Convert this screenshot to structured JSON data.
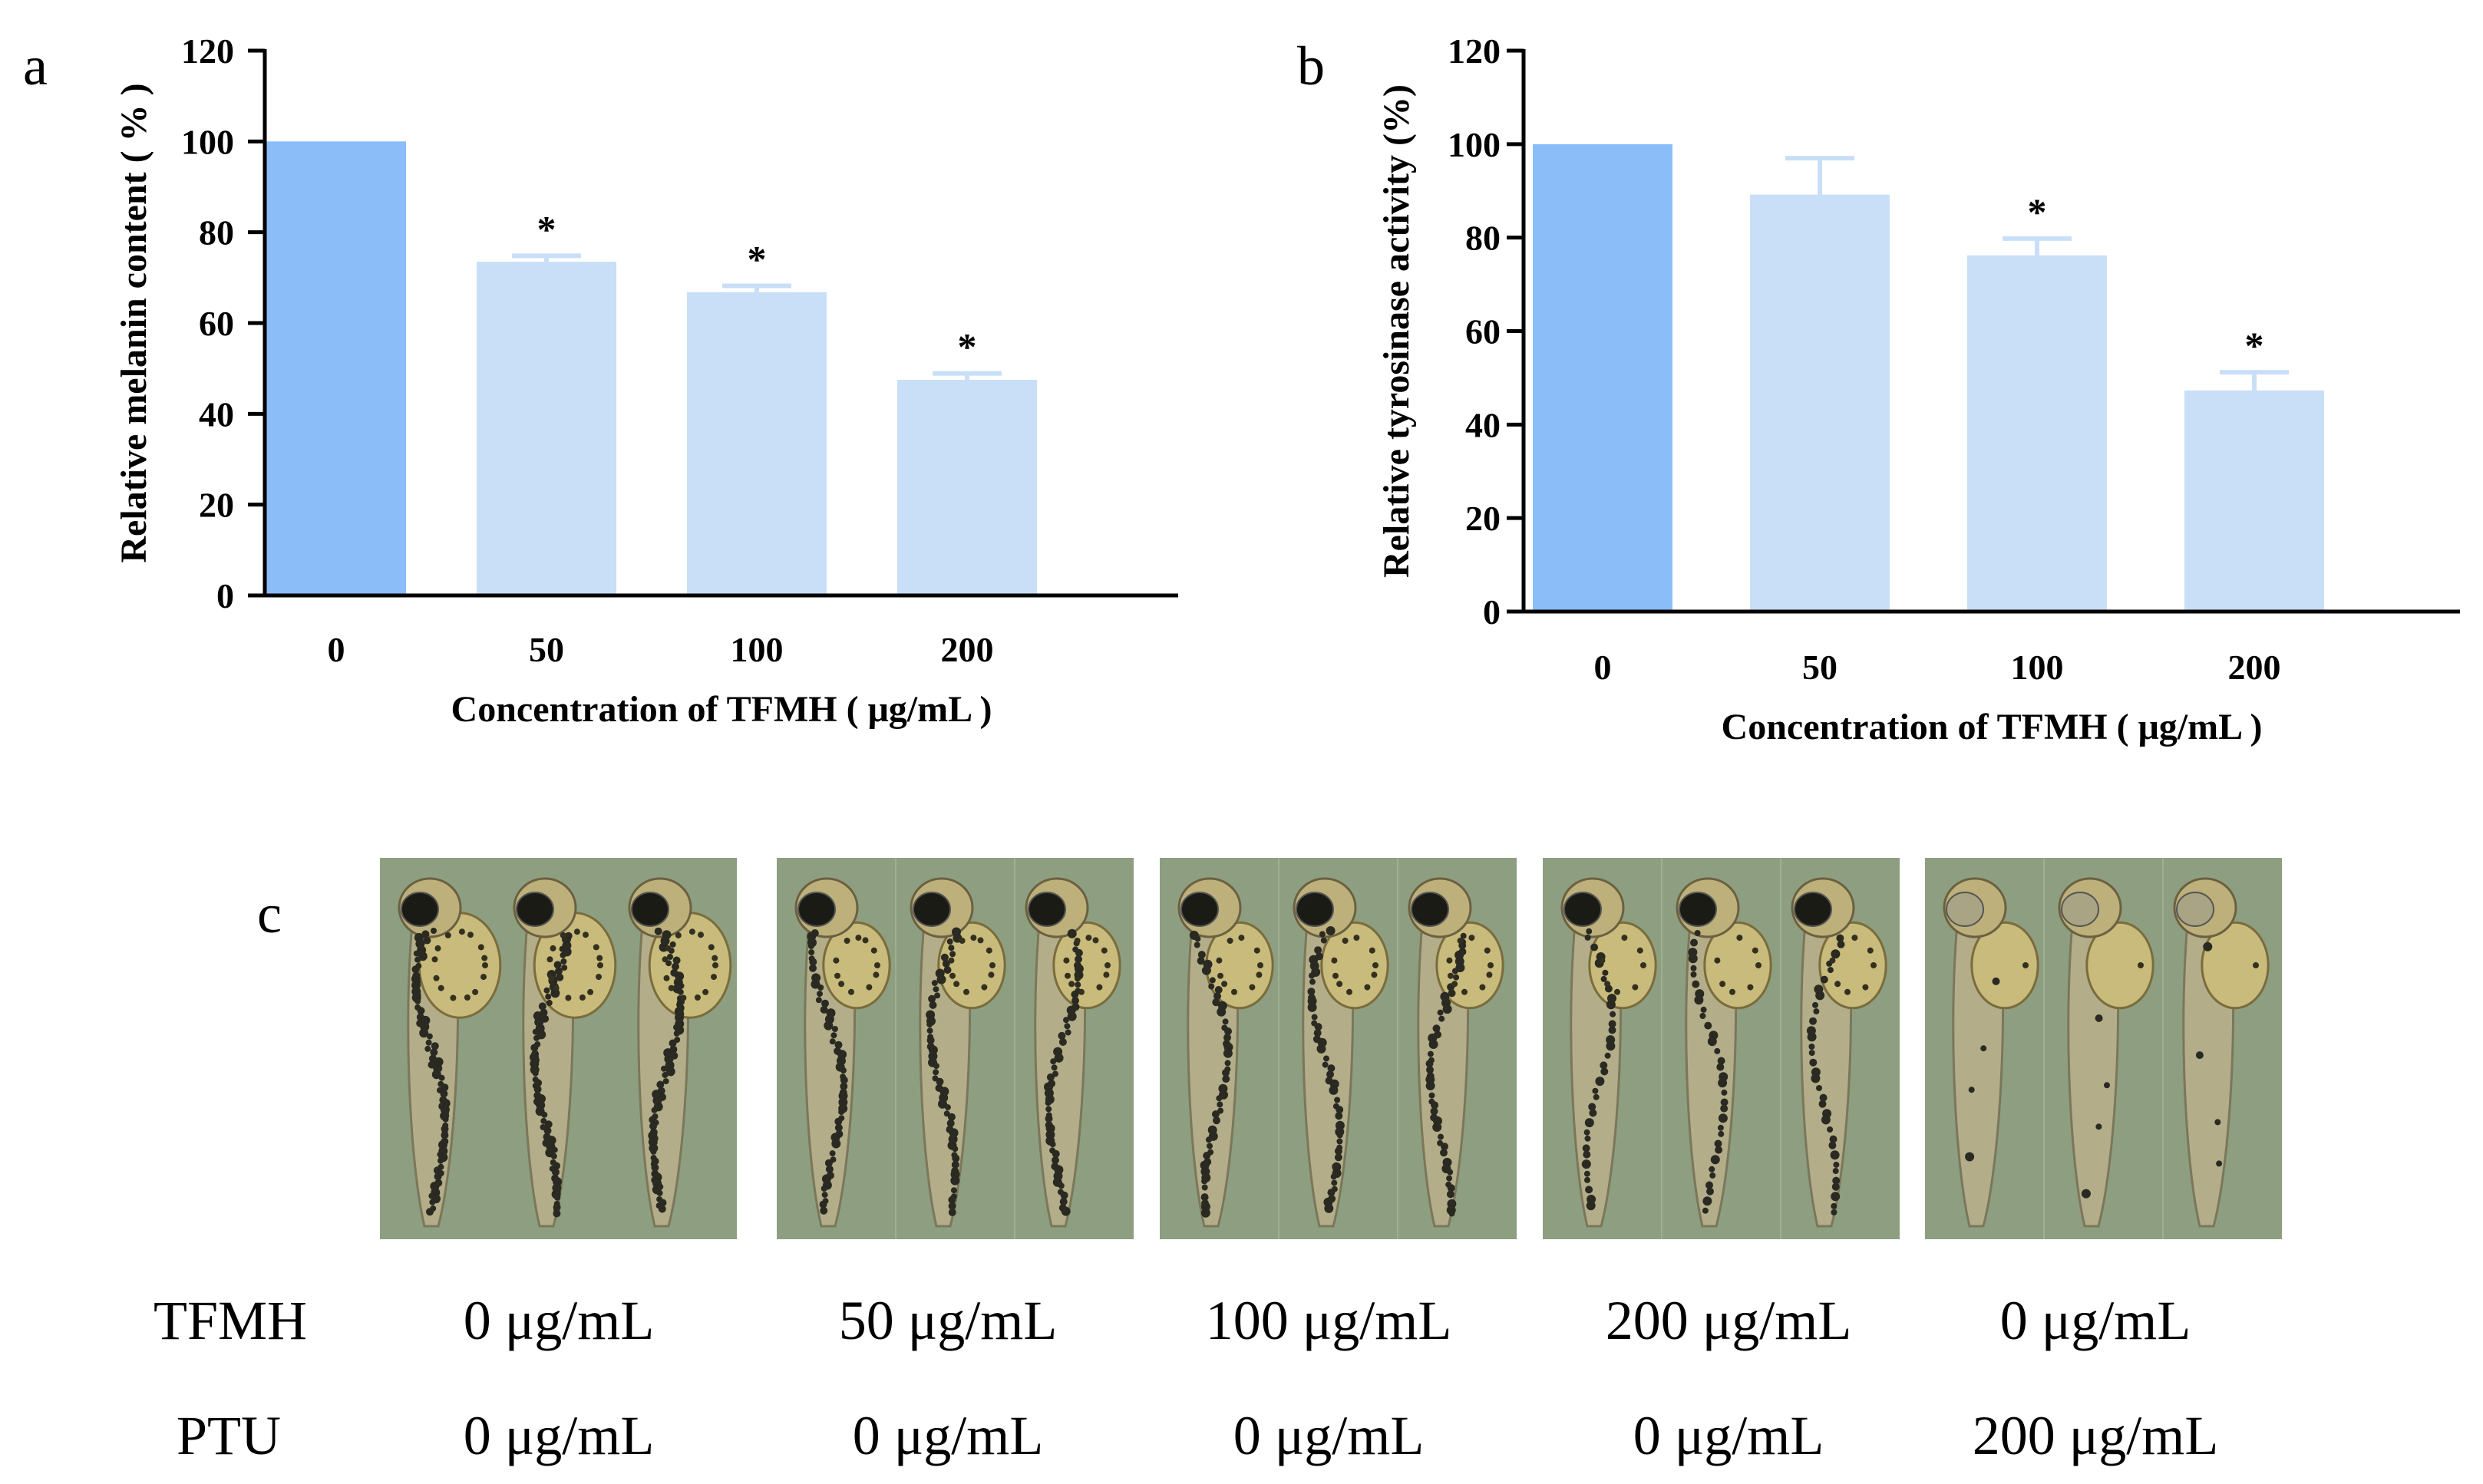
{
  "panels": {
    "a": "a",
    "b": "b",
    "c": "c"
  },
  "colors": {
    "control_bar": "#8bbdf9",
    "treated_bar": "#c9dff8",
    "axis": "#000000",
    "image_bg": "#8d9f80"
  },
  "chart_data": [
    {
      "id": "a",
      "type": "bar",
      "categories": [
        "0",
        "50",
        "100",
        "200"
      ],
      "values": [
        100,
        73.5,
        66.8,
        47.5
      ],
      "errors": [
        0,
        1.3,
        1.4,
        1.4
      ],
      "significance": [
        "",
        "*",
        "*",
        "*"
      ],
      "ylim": [
        0,
        120
      ],
      "yticks": [
        "0",
        "20",
        "40",
        "60",
        "80",
        "100",
        "120"
      ],
      "ylabel": "Relative melanin content ( % )",
      "xlabel": "Concentration of TFMH ( μg/mL )"
    },
    {
      "id": "b",
      "type": "bar",
      "categories": [
        "0",
        "50",
        "100",
        "200"
      ],
      "values": [
        100,
        89.2,
        76.2,
        47.3
      ],
      "errors": [
        0,
        7.8,
        3.6,
        3.9
      ],
      "significance": [
        "",
        "",
        "*",
        "*"
      ],
      "ylim": [
        0,
        120
      ],
      "yticks": [
        "0",
        "20",
        "40",
        "60",
        "80",
        "100",
        "120"
      ],
      "ylabel": "Relative tyrosinase activity (%)",
      "xlabel": "Concentration of TFMH ( μg/mL )"
    }
  ],
  "zebrafish": {
    "groups": [
      {
        "tfmh": "0 μg/mL",
        "ptu": "0 μg/mL",
        "pigment": 1.0
      },
      {
        "tfmh": "50 μg/mL",
        "ptu": "0 μg/mL",
        "pigment": 0.75
      },
      {
        "tfmh": "100 μg/mL",
        "ptu": "0 μg/mL",
        "pigment": 0.68
      },
      {
        "tfmh": "200 μg/mL",
        "ptu": "0 μg/mL",
        "pigment": 0.48
      },
      {
        "tfmh": "0 μg/mL",
        "ptu": "200 μg/mL",
        "pigment": 0.05
      }
    ],
    "row_labels": {
      "tfmh": "TFMH",
      "ptu": "PTU"
    }
  }
}
